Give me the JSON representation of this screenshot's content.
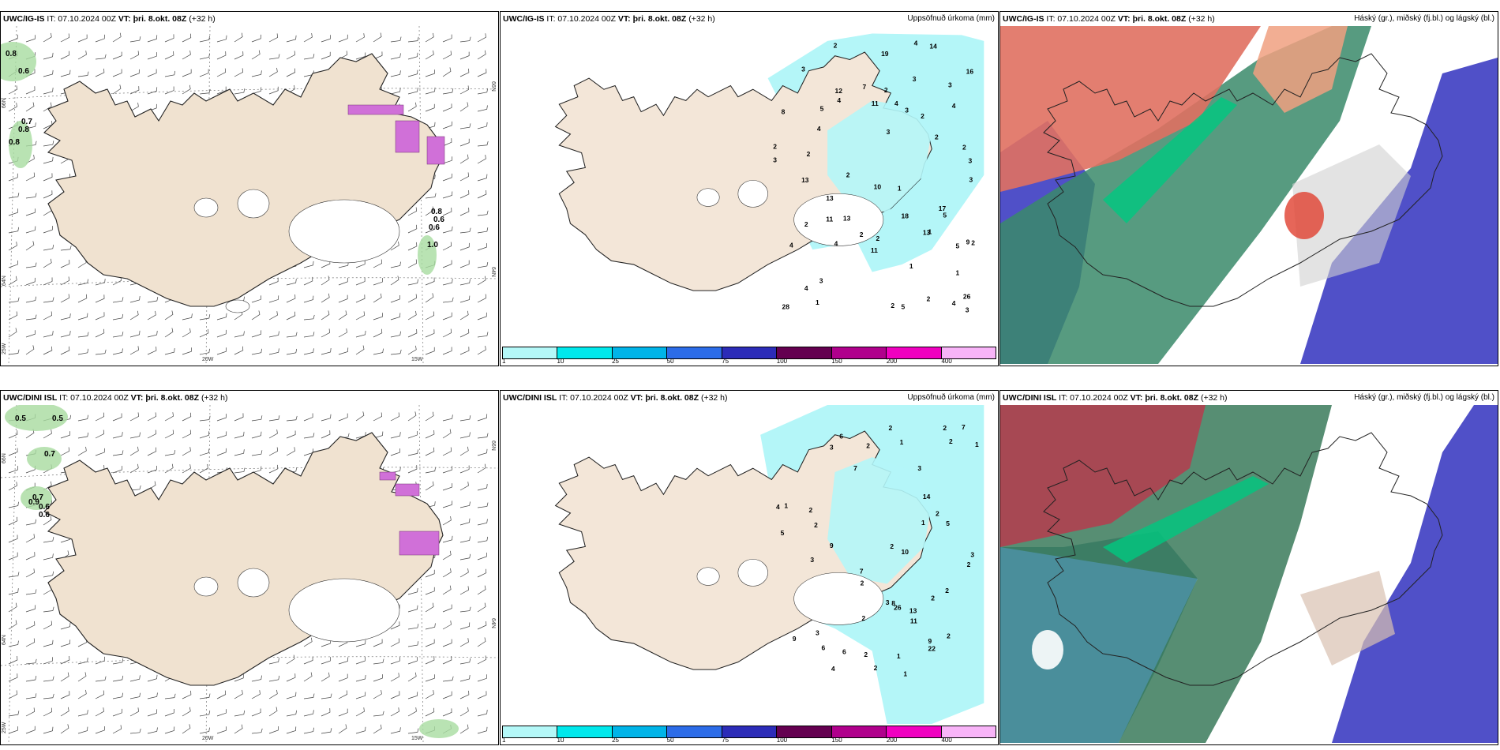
{
  "panels": {
    "top_wind": {
      "model": "UWC/IG-IS",
      "it": "IT: 07.10.2024 00Z",
      "vt_label": "VT:",
      "vt": "þri. 8.okt. 08Z",
      "lead": "(+32 h)",
      "labels": [
        "0.8",
        "0.6",
        "0.7",
        "0.8",
        "0.8",
        "0.8",
        "0.6",
        "0.6",
        "1.0"
      ],
      "axis": {
        "lat1": "66N",
        "lat2": "64N",
        "lon1": "25W",
        "lon2": "20W",
        "lon3": "15W",
        "lat3": "66N",
        "lat4": "64N"
      }
    },
    "top_precip": {
      "model": "UWC/IG-IS",
      "it": "IT: 07.10.2024 00Z",
      "vt_label": "VT:",
      "vt": "þri. 8.okt. 08Z",
      "lead": "(+32 h)",
      "title": "Uppsöfnuð úrkoma (mm)",
      "labels": [
        "4",
        "2",
        "3",
        "3",
        "2",
        "9",
        "13",
        "4",
        "5",
        "3",
        "4",
        "5",
        "2",
        "4",
        "4",
        "10",
        "13",
        "2",
        "2",
        "7",
        "26",
        "2",
        "4",
        "2",
        "3",
        "14",
        "28",
        "1",
        "2",
        "16",
        "1",
        "3",
        "13",
        "19",
        "2",
        "3",
        "3",
        "18",
        "4",
        "17",
        "5",
        "8",
        "2",
        "2",
        "1",
        "3",
        "4",
        "2",
        "12",
        "3",
        "4",
        "5",
        "2",
        "3",
        "11",
        "11",
        "11",
        "13",
        "1",
        "1",
        "2"
      ]
    },
    "top_cloud": {
      "model": "UWC/IG-IS",
      "it": "IT: 07.10.2024 00Z",
      "vt_label": "VT:",
      "vt": "þri. 8.okt. 08Z",
      "lead": "(+32 h)",
      "title": "Háský (gr.), miðský (fj.bl.) og lágský (bl.)"
    },
    "bot_wind": {
      "model": "UWC/DINI ISL",
      "it": "IT: 07.10.2024 00Z",
      "vt_label": "VT:",
      "vt": "þri. 8.okt. 08Z",
      "lead": "(+32 h)",
      "labels": [
        "0.5",
        "0.5",
        "0.7",
        "0.7",
        "0.9",
        "0.6",
        "0.6"
      ],
      "axis": {
        "lat1": "66N",
        "lat2": "64N",
        "lon1": "25W",
        "lon2": "20W",
        "lon3": "15W",
        "lat3": "66N",
        "lat4": "64N"
      }
    },
    "bot_precip": {
      "model": "UWC/DINI ISL",
      "it": "IT: 07.10.2024 00Z",
      "vt_label": "VT:",
      "vt": "þri. 8.okt. 08Z",
      "lead": "(+32 h)",
      "title": "Uppsöfnuð úrkoma (mm)",
      "labels": [
        "1",
        "3",
        "3",
        "2",
        "2",
        "1",
        "2",
        "9",
        "2",
        "6",
        "9",
        "4",
        "7",
        "8",
        "1",
        "2",
        "5",
        "2",
        "2",
        "5",
        "9",
        "26",
        "4",
        "22",
        "10",
        "14",
        "3",
        "2",
        "2",
        "7",
        "11",
        "7",
        "3",
        "6",
        "6",
        "2",
        "2",
        "1",
        "3",
        "13",
        "2",
        "2",
        "1",
        "2",
        "1",
        "2",
        "3",
        "2"
      ]
    },
    "bot_cloud": {
      "model": "UWC/DINI ISL",
      "it": "IT: 07.10.2024 00Z",
      "vt_label": "VT:",
      "vt": "þri. 8.okt. 08Z",
      "lead": "(+32 h)",
      "title": "Háský (gr.), miðský (fj.bl.) og lágský (bl.)"
    }
  },
  "colorbar": {
    "colors": [
      "#b4f8f8",
      "#00e8ec",
      "#00b4e8",
      "#2c6ce8",
      "#2c2cb8",
      "#640050",
      "#b0008c",
      "#f000c0",
      "#f8b4f8"
    ],
    "labels": [
      "1",
      "10",
      "25",
      "50",
      "75",
      "100",
      "150",
      "200",
      "400"
    ]
  },
  "colors": {
    "land": "#f0e2d0",
    "precip": "#b4f6f8",
    "high_cloud": "#3cb878",
    "mid_cloud": "#1e50a0",
    "low_cloud": "#6060c8",
    "snow": "#c850c8"
  }
}
